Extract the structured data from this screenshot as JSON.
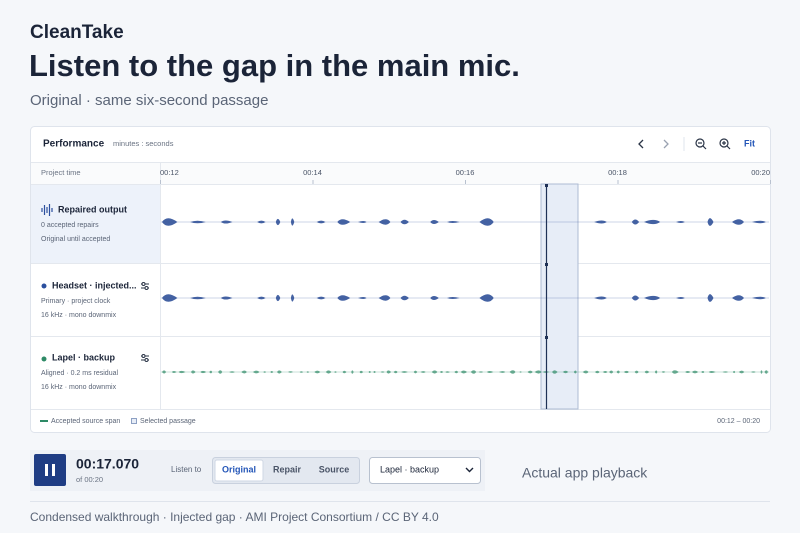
{
  "app_name": "CleanTake",
  "title": "Listen to the gap in the main mic.",
  "subtitle": "Original · same six-second passage",
  "panel": {
    "title": "Performance",
    "units": "minutes : seconds",
    "fit": "Fit",
    "ruler_label": "Project time",
    "ruler_ticks": [
      "00:12",
      "00:14",
      "00:16",
      "00:18",
      "00:20"
    ],
    "tracks": [
      {
        "name": "Repaired output",
        "lines": [
          "0 accepted repairs",
          "Original until accepted"
        ]
      },
      {
        "name": "Headset · injected...",
        "lines": [
          "Primary · project clock",
          "16 kHz · mono downmix"
        ]
      },
      {
        "name": "Lapel · backup",
        "lines": [
          "Aligned · 0.2 ms residual",
          "16 kHz · mono downmix"
        ]
      }
    ],
    "legend": [
      "Accepted source span",
      "Selected passage"
    ],
    "range": "00:12 – 00:20"
  },
  "transport": {
    "time": "00:17.070",
    "duration": "of 00:20",
    "listen_label": "Listen to",
    "options": [
      "Original",
      "Repair",
      "Source"
    ],
    "selected_source": "Lapel · backup"
  },
  "side_note": "Actual app playback",
  "footer": "Condensed walkthrough · Injected gap · AMI Project Consortium / CC BY 4.0"
}
